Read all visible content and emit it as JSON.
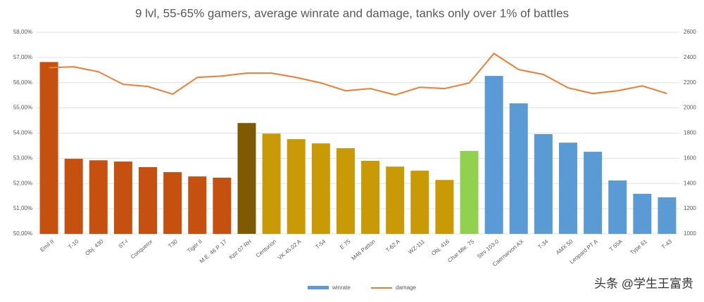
{
  "chart_data": {
    "type": "bar_line",
    "title": "9 lvl, 55-65% gamers, average winrate and damage, tanks only over 1% of battles",
    "categories": [
      "Emil II",
      "T-10",
      "Obj. 430",
      "ST-I",
      "Conqueror",
      "T30",
      "Tiger II",
      "M.E. 46 P. 17",
      "Kpz 07 RH",
      "Centurion",
      "VK 45.02 A",
      "T-54",
      "E 75",
      "M46 Patton",
      "T-62 A",
      "WZ-111",
      "Obj. 416",
      "Char Mle. 75",
      "Strv 103-0",
      "Caernarvon AX",
      "T-34",
      "AMX 50",
      "Leopard PT A",
      "T 55A",
      "Type 61",
      "T-43"
    ],
    "series": [
      {
        "name": "winrate",
        "type": "bar",
        "values": [
          56.82,
          52.98,
          52.92,
          52.87,
          52.65,
          52.45,
          52.28,
          52.23,
          54.4,
          53.98,
          53.76,
          53.59,
          53.4,
          52.9,
          52.67,
          52.51,
          52.14,
          53.29,
          56.27,
          55.18,
          53.96,
          53.62,
          53.26,
          52.12,
          51.59,
          51.45
        ],
        "colors": [
          "#c5500f",
          "#c5500f",
          "#c5500f",
          "#c5500f",
          "#c5500f",
          "#c5500f",
          "#c5500f",
          "#c5500f",
          "#7f5a00",
          "#c99a05",
          "#c99a05",
          "#c99a05",
          "#c99a05",
          "#c99a05",
          "#c99a05",
          "#c99a05",
          "#c99a05",
          "#92d050",
          "#5b9bd5",
          "#5b9bd5",
          "#5b9bd5",
          "#5b9bd5",
          "#5b9bd5",
          "#5b9bd5",
          "#5b9bd5",
          "#5b9bd5"
        ],
        "color": "#5b9bd5"
      },
      {
        "name": "damage",
        "type": "line",
        "axis": "y2",
        "color": "#ed7d31",
        "values": [
          2320,
          2326,
          2287,
          2187,
          2170,
          2109,
          2242,
          2253,
          2276,
          2276,
          2242,
          2198,
          2136,
          2153,
          2103,
          2164,
          2153,
          2198,
          2432,
          2304,
          2265,
          2159,
          2114,
          2136,
          2175,
          2114
        ]
      }
    ],
    "ylim": [
      50,
      58
    ],
    "yticks": [
      {
        "value": 50,
        "label": "50,00%"
      },
      {
        "value": 51,
        "label": "51,00%"
      },
      {
        "value": 52,
        "label": "52,00%"
      },
      {
        "value": 53,
        "label": "53,00%"
      },
      {
        "value": 54,
        "label": "54,00%"
      },
      {
        "value": 55,
        "label": "55,00%"
      },
      {
        "value": 56,
        "label": "56,00%"
      },
      {
        "value": 57,
        "label": "57,00%"
      },
      {
        "value": 58,
        "label": "58,00%"
      }
    ],
    "y2lim": [
      1000,
      2600
    ],
    "y2ticks": [
      1000,
      1200,
      1400,
      1600,
      1800,
      2000,
      2200,
      2400,
      2600
    ],
    "grid": true,
    "legend": "bottom",
    "watermark": "头条 @学生王富贵"
  }
}
